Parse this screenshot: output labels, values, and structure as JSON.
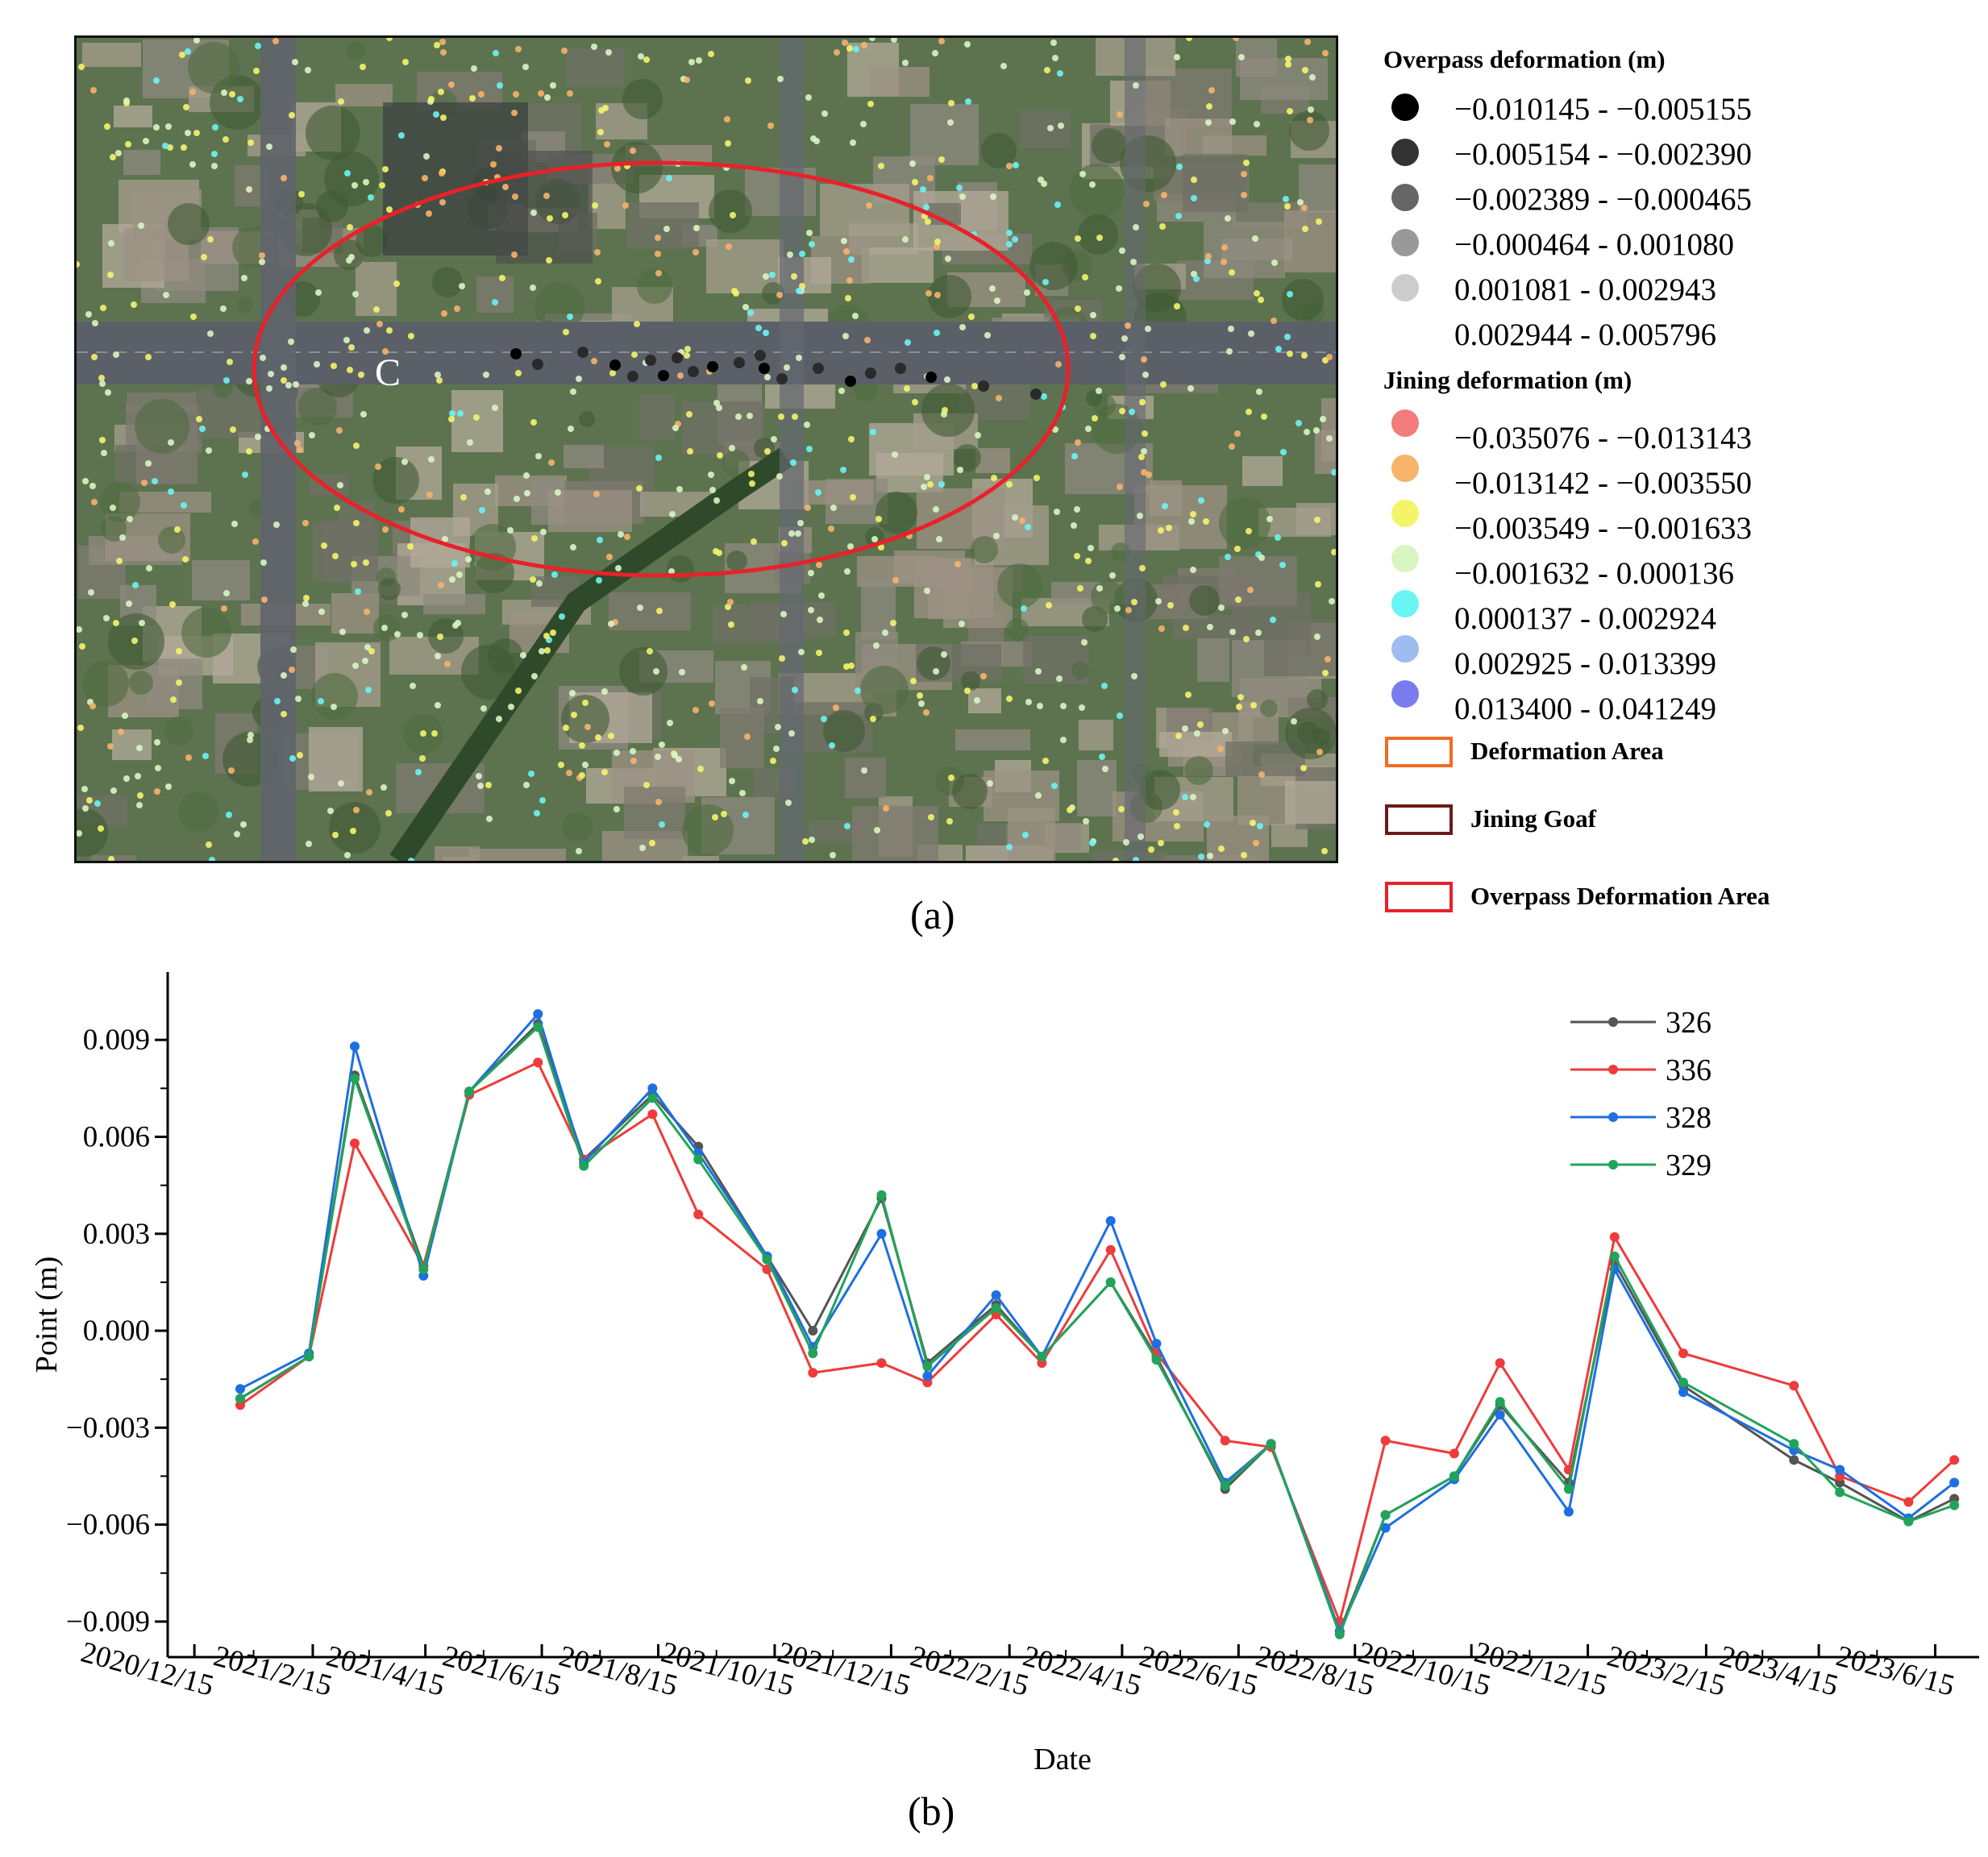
{
  "panel_a": {
    "label": "(a)",
    "map_marker": "C",
    "legend": {
      "overpass_title": "Overpass deformation (m)",
      "overpass_classes": [
        {
          "label": "−0.010145 - −0.005155",
          "color": "#000000"
        },
        {
          "label": "−0.005154 - −0.002390",
          "color": "#333333"
        },
        {
          "label": "−0.002389 - −0.000465",
          "color": "#666666"
        },
        {
          "label": "−0.000464 - 0.001080",
          "color": "#999999"
        },
        {
          "label": "0.001081 - 0.002943",
          "color": "#cccccc"
        },
        {
          "label": "0.002944 - 0.005796",
          "color": "#ffffff"
        }
      ],
      "jining_title": "Jining deformation (m)",
      "jining_classes": [
        {
          "label": "−0.035076 - −0.013143",
          "color": "#f47b7b"
        },
        {
          "label": "−0.013142 - −0.003550",
          "color": "#f7b36a"
        },
        {
          "label": "−0.003549 - −0.001633",
          "color": "#f4f46a"
        },
        {
          "label": "−0.001632 - 0.000136",
          "color": "#d9f5c2"
        },
        {
          "label": "0.000137 - 0.002924",
          "color": "#6af4f4"
        },
        {
          "label": "0.002925 - 0.013399",
          "color": "#9dbcf0"
        },
        {
          "label": "0.013400 - 0.041249",
          "color": "#7b7bf0"
        }
      ],
      "areas": [
        {
          "label": "Deformation Area",
          "color": "#f26c22"
        },
        {
          "label": "Jining Goaf",
          "color": "#6b1a1a"
        },
        {
          "label": "Overpass Deformation Area",
          "color": "#e8212a"
        }
      ]
    }
  },
  "panel_b": {
    "label": "(b)"
  },
  "chart_data": {
    "type": "line",
    "title": "",
    "xlabel": "Date",
    "ylabel": "Point (m)",
    "x_tick_labels": [
      "2020/12/15",
      "2021/2/15",
      "2021/4/15",
      "2021/6/15",
      "2021/8/15",
      "2021/10/15",
      "2021/12/15",
      "2022/2/15",
      "2022/4/15",
      "2022/6/15",
      "2022/8/15",
      "2022/10/15",
      "2022/12/15",
      "2023/2/15",
      "2023/4/15",
      "2023/6/15"
    ],
    "y_ticks": [
      -0.009,
      -0.006,
      -0.003,
      0.0,
      0.003,
      0.006,
      0.009
    ],
    "y_tick_labels": [
      "−0.009",
      "−0.006",
      "−0.003",
      "0.000",
      "0.003",
      "0.006",
      "0.009"
    ],
    "ylim": [
      -0.0101,
      0.0111
    ],
    "legend_position": "top-right",
    "x": [
      "2021/1/8",
      "2021/2/13",
      "2021/3/9",
      "2021/4/14",
      "2021/5/8",
      "2021/6/13",
      "2021/7/7",
      "2021/8/12",
      "2021/9/5",
      "2021/10/11",
      "2021/11/4",
      "2021/12/10",
      "2022/1/3",
      "2022/2/8",
      "2022/3/4",
      "2022/4/9",
      "2022/5/3",
      "2022/6/8",
      "2022/7/2",
      "2022/8/7",
      "2022/8/31",
      "2022/10/6",
      "2022/10/30",
      "2022/12/5",
      "2022/12/29",
      "2023/2/3",
      "2023/4/2",
      "2023/4/26",
      "2023/6/1",
      "2023/6/25"
    ],
    "series": [
      {
        "name": "326",
        "color": "#555555",
        "values": [
          -0.0021,
          -0.0008,
          0.0079,
          0.002,
          0.0074,
          0.0095,
          0.0053,
          0.0073,
          0.0057,
          0.0023,
          0.0,
          0.0041,
          -0.001,
          0.0008,
          -0.0008,
          0.0015,
          -0.0008,
          -0.0049,
          -0.0035,
          -0.0093,
          -0.0057,
          -0.0045,
          -0.0023,
          -0.0047,
          0.0021,
          -0.0017,
          -0.004,
          -0.0047,
          -0.0059,
          -0.0052
        ]
      },
      {
        "name": "336",
        "color": "#ee3b3b",
        "values": [
          -0.0023,
          -0.0008,
          0.0058,
          0.002,
          0.0073,
          0.0083,
          0.0053,
          0.0067,
          0.0036,
          0.0019,
          -0.0013,
          -0.001,
          -0.0016,
          0.0005,
          -0.001,
          0.0025,
          -0.0007,
          -0.0034,
          -0.0036,
          -0.009,
          -0.0034,
          -0.0038,
          -0.001,
          -0.0043,
          0.0029,
          -0.0007,
          -0.0017,
          -0.0045,
          -0.0053,
          -0.004
        ]
      },
      {
        "name": "328",
        "color": "#1e6fe0",
        "values": [
          -0.0018,
          -0.0007,
          0.0088,
          0.0017,
          0.0074,
          0.0098,
          0.0052,
          0.0075,
          0.0055,
          0.0023,
          -0.0005,
          0.003,
          -0.0014,
          0.0011,
          -0.0008,
          0.0034,
          -0.0004,
          -0.0047,
          -0.0035,
          -0.0093,
          -0.0061,
          -0.0046,
          -0.0026,
          -0.0056,
          0.0019,
          -0.0019,
          -0.0037,
          -0.0043,
          -0.0058,
          -0.0047
        ]
      },
      {
        "name": "329",
        "color": "#22a35a",
        "values": [
          -0.0021,
          -0.0008,
          0.0078,
          0.0019,
          0.0074,
          0.0094,
          0.0051,
          0.0072,
          0.0053,
          0.0022,
          -0.0007,
          0.0042,
          -0.0011,
          0.0007,
          -0.0008,
          0.0015,
          -0.0009,
          -0.0048,
          -0.0035,
          -0.0094,
          -0.0057,
          -0.0045,
          -0.0022,
          -0.0049,
          0.0023,
          -0.0016,
          -0.0035,
          -0.005,
          -0.0059,
          -0.0054
        ]
      }
    ]
  }
}
